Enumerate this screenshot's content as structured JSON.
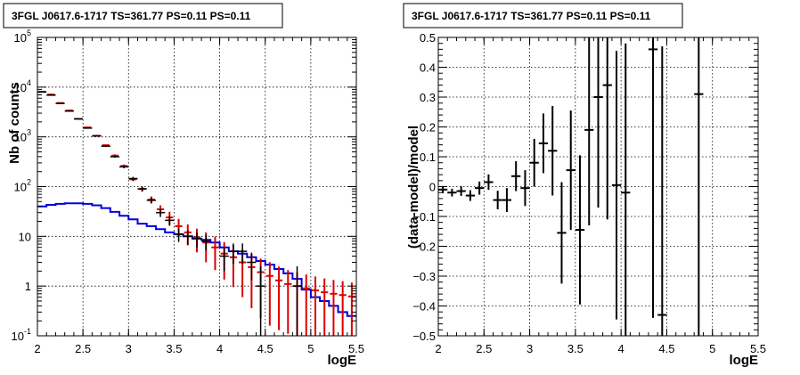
{
  "chart_data": [
    {
      "type": "histogram",
      "title": "3FGL J0617.6-1717 TS=361.77 PS=0.11 PS=0.11",
      "xlabel": "logE",
      "ylabel": "Nb of counts",
      "yscale": "log",
      "xlim": [
        2,
        5.5
      ],
      "ylim": [
        0.1,
        100000
      ],
      "grid": true,
      "x_ticks": [
        "2",
        "2.5",
        "3",
        "3.5",
        "4",
        "4.5",
        "5",
        "5.5"
      ],
      "y_ticks": [
        {
          "base": "10",
          "exp": "-1",
          "v": 0.1,
          "plain": "10⁻¹",
          "show": "10^-1"
        },
        {
          "base": "1",
          "v": 1
        },
        {
          "base": "10",
          "v": 10
        },
        {
          "base": "10",
          "exp": "2",
          "v": 100
        },
        {
          "base": "10",
          "exp": "3",
          "v": 1000
        },
        {
          "base": "10",
          "exp": "4",
          "v": 10000
        },
        {
          "base": "10",
          "exp": "5",
          "v": 100000
        }
      ],
      "bin_edges": [
        2.0,
        2.1,
        2.2,
        2.3,
        2.4,
        2.5,
        2.6,
        2.7,
        2.8,
        2.9,
        3.0,
        3.1,
        3.2,
        3.3,
        3.4,
        3.5,
        3.6,
        3.7,
        3.8,
        3.9,
        4.0,
        4.1,
        4.2,
        4.3,
        4.4,
        4.5,
        4.6,
        4.7,
        4.8,
        4.9,
        5.0,
        5.1,
        5.2,
        5.3,
        5.4,
        5.5
      ],
      "series": [
        {
          "role": "data",
          "color": "#000000",
          "x": [
            2.05,
            2.15,
            2.25,
            2.35,
            2.45,
            2.55,
            2.65,
            2.75,
            2.85,
            2.95,
            3.05,
            3.15,
            3.25,
            3.35,
            3.45,
            3.55,
            3.65,
            3.75,
            3.85,
            4.05,
            4.15,
            4.25,
            4.35,
            4.45,
            4.85
          ],
          "y": [
            8000,
            6900,
            4700,
            3300,
            2300,
            1500,
            1050,
            650,
            400,
            250,
            145,
            90,
            53,
            30,
            21,
            11,
            10,
            9,
            8,
            4,
            5,
            5,
            3,
            1,
            1
          ],
          "err_lo": [
            90,
            83,
            69,
            57,
            48,
            39,
            32,
            25,
            20,
            16,
            12,
            9.5,
            7.3,
            5.5,
            4.6,
            3.3,
            3.2,
            3.0,
            2.8,
            2.0,
            2.2,
            2.2,
            1.7,
            0.9,
            0.9
          ],
          "err_hi": [
            90,
            83,
            69,
            57,
            48,
            39,
            32,
            25,
            20,
            16,
            12,
            9.5,
            7.3,
            5.5,
            4.6,
            3.3,
            3.2,
            3.0,
            2.8,
            2.0,
            2.2,
            2.2,
            1.7,
            1.5,
            1.5
          ]
        },
        {
          "role": "model-total",
          "color": "#dd0000",
          "y": [
            8100,
            7100,
            4800,
            3400,
            2300,
            1550,
            1050,
            680,
            420,
            260,
            140,
            90,
            55,
            35,
            24,
            16,
            12,
            9.5,
            7.5,
            6.0,
            4.5,
            3.8,
            3.0,
            2.4,
            1.9,
            1.6,
            1.3,
            1.1,
            1.0,
            0.9,
            0.82,
            0.75,
            0.7,
            0.66,
            0.62
          ],
          "err_rel": [
            0.02,
            0.02,
            0.02,
            0.02,
            0.03,
            0.03,
            0.04,
            0.05,
            0.06,
            0.07,
            0.08,
            0.12,
            0.15,
            0.2,
            0.3,
            0.4,
            0.45,
            0.5,
            0.6,
            0.65,
            0.7,
            0.75,
            0.8,
            0.85,
            0.88,
            0.9,
            0.9,
            0.9,
            0.9,
            0.9,
            0.9,
            0.9,
            0.9,
            0.9,
            0.9
          ]
        },
        {
          "role": "model-component",
          "color": "#0000dd",
          "y": [
            40,
            43,
            45,
            46,
            46,
            45,
            42,
            37,
            31,
            26,
            22,
            18,
            16,
            14,
            12,
            11,
            10,
            9,
            8.5,
            7.5,
            6,
            5,
            4.5,
            3.8,
            3.2,
            2.7,
            2.2,
            1.8,
            1.4,
            0.85,
            0.6,
            0.5,
            0.4,
            0.3,
            0.25
          ]
        }
      ]
    },
    {
      "type": "scatter-errorbars",
      "title": "3FGL J0617.6-1717 TS=361.77 PS=0.11 PS=0.11",
      "xlabel": "logE",
      "ylabel": "(data-model)/model",
      "xlim": [
        2,
        5.5
      ],
      "ylim": [
        -0.5,
        0.5
      ],
      "grid": true,
      "x_ticks": [
        "2",
        "2.5",
        "3",
        "3.5",
        "4",
        "4.5",
        "5",
        "5.5"
      ],
      "y_ticks": [
        "−0.5",
        "−0.4",
        "−0.3",
        "−0.2",
        "−0.1",
        "0",
        "0.1",
        "0.2",
        "0.3",
        "0.4",
        "0.5"
      ],
      "series": [
        {
          "role": "residuals",
          "color": "#000000",
          "x": [
            2.05,
            2.15,
            2.25,
            2.35,
            2.45,
            2.55,
            2.65,
            2.75,
            2.85,
            2.95,
            3.05,
            3.15,
            3.25,
            3.35,
            3.45,
            3.55,
            3.65,
            3.75,
            3.85,
            3.95,
            4.05,
            4.35,
            4.45,
            4.85
          ],
          "y": [
            -0.01,
            -0.02,
            -0.015,
            -0.03,
            -0.005,
            0.015,
            -0.045,
            -0.045,
            0.035,
            -0.005,
            0.08,
            0.145,
            0.12,
            -0.155,
            0.055,
            -0.145,
            0.19,
            0.3,
            0.34,
            0.005,
            -0.02,
            0.46,
            -0.43,
            0.31
          ],
          "err": [
            0.012,
            0.013,
            0.016,
            0.018,
            0.022,
            0.026,
            0.031,
            0.04,
            0.05,
            0.06,
            0.08,
            0.1,
            0.15,
            0.17,
            0.2,
            0.25,
            0.32,
            0.37,
            0.45,
            0.45,
            0.5,
            0.9,
            0.9,
            0.95
          ]
        }
      ]
    }
  ]
}
